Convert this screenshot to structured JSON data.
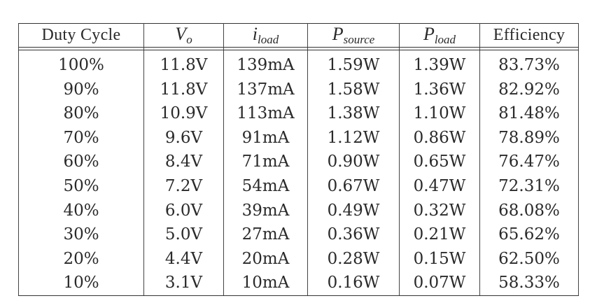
{
  "table": {
    "headers": [
      {
        "base": "Duty Cycle",
        "sub": ""
      },
      {
        "base": "V",
        "sub": "o"
      },
      {
        "base": "i",
        "sub": "load"
      },
      {
        "base": "P",
        "sub": "source"
      },
      {
        "base": "P",
        "sub": "load"
      },
      {
        "base": "Efficiency",
        "sub": ""
      }
    ],
    "rows": [
      [
        "100%",
        "11.8V",
        "139mA",
        "1.59W",
        "1.39W",
        "83.73%"
      ],
      [
        "90%",
        "11.8V",
        "137mA",
        "1.58W",
        "1.36W",
        "82.92%"
      ],
      [
        "80%",
        "10.9V",
        "113mA",
        "1.38W",
        "1.10W",
        "81.48%"
      ],
      [
        "70%",
        "9.6V",
        "91mA",
        "1.12W",
        "0.86W",
        "78.89%"
      ],
      [
        "60%",
        "8.4V",
        "71mA",
        "0.90W",
        "0.65W",
        "76.47%"
      ],
      [
        "50%",
        "7.2V",
        "54mA",
        "0.67W",
        "0.47W",
        "72.31%"
      ],
      [
        "40%",
        "6.0V",
        "39mA",
        "0.49W",
        "0.32W",
        "68.08%"
      ],
      [
        "30%",
        "5.0V",
        "27mA",
        "0.36W",
        "0.21W",
        "65.62%"
      ],
      [
        "20%",
        "4.4V",
        "20mA",
        "0.28W",
        "0.15W",
        "62.50%"
      ],
      [
        "10%",
        "3.1V",
        "10mA",
        "0.16W",
        "0.07W",
        "58.33%"
      ]
    ]
  }
}
